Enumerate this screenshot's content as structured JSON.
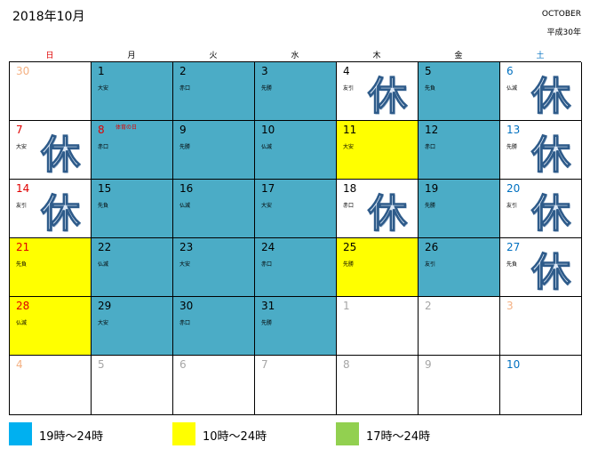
{
  "header": {
    "title": "2018年10月",
    "month_en": "OCTOBER",
    "era": "平成30年"
  },
  "weekdays": [
    {
      "label": "日",
      "color": "#e00000"
    },
    {
      "label": "月",
      "color": "#000000"
    },
    {
      "label": "火",
      "color": "#000000"
    },
    {
      "label": "水",
      "color": "#000000"
    },
    {
      "label": "木",
      "color": "#000000"
    },
    {
      "label": "金",
      "color": "#000000"
    },
    {
      "label": "土",
      "color": "#0070c0"
    }
  ],
  "colors": {
    "blue": "#4bacc6",
    "yellow": "#ffff00",
    "green": "#92d050",
    "sunday_red": "#e00000",
    "saturday_blue": "#0070c0",
    "out_of_month": "#f4b183",
    "out_of_month_gray": "#a6a6a6"
  },
  "closed_mark": "休",
  "weeks": [
    [
      {
        "day": "30",
        "fill": "white",
        "num_color": "#f4b183",
        "note": "",
        "closed": false,
        "holiday": ""
      },
      {
        "day": "1",
        "fill": "blue",
        "num_color": "#000000",
        "note": "大安",
        "closed": false,
        "holiday": ""
      },
      {
        "day": "2",
        "fill": "blue",
        "num_color": "#000000",
        "note": "赤口",
        "closed": false,
        "holiday": ""
      },
      {
        "day": "3",
        "fill": "blue",
        "num_color": "#000000",
        "note": "先勝",
        "closed": false,
        "holiday": ""
      },
      {
        "day": "4",
        "fill": "white",
        "num_color": "#000000",
        "note": "友引",
        "closed": true,
        "holiday": ""
      },
      {
        "day": "5",
        "fill": "blue",
        "num_color": "#000000",
        "note": "先負",
        "closed": false,
        "holiday": ""
      },
      {
        "day": "6",
        "fill": "white",
        "num_color": "#0070c0",
        "note": "仏滅",
        "closed": true,
        "holiday": ""
      }
    ],
    [
      {
        "day": "7",
        "fill": "white",
        "num_color": "#e00000",
        "note": "大安",
        "closed": true,
        "holiday": ""
      },
      {
        "day": "8",
        "fill": "blue",
        "num_color": "#e00000",
        "note": "赤口",
        "closed": false,
        "holiday": "体育の日"
      },
      {
        "day": "9",
        "fill": "blue",
        "num_color": "#000000",
        "note": "先勝",
        "closed": false,
        "holiday": ""
      },
      {
        "day": "10",
        "fill": "blue",
        "num_color": "#000000",
        "note": "仏滅",
        "closed": false,
        "holiday": ""
      },
      {
        "day": "11",
        "fill": "yellow",
        "num_color": "#000000",
        "note": "大安",
        "closed": false,
        "holiday": ""
      },
      {
        "day": "12",
        "fill": "blue",
        "num_color": "#000000",
        "note": "赤口",
        "closed": false,
        "holiday": ""
      },
      {
        "day": "13",
        "fill": "white",
        "num_color": "#0070c0",
        "note": "先勝",
        "closed": true,
        "holiday": ""
      }
    ],
    [
      {
        "day": "14",
        "fill": "white",
        "num_color": "#e00000",
        "note": "友引",
        "closed": true,
        "holiday": ""
      },
      {
        "day": "15",
        "fill": "blue",
        "num_color": "#000000",
        "note": "先負",
        "closed": false,
        "holiday": ""
      },
      {
        "day": "16",
        "fill": "blue",
        "num_color": "#000000",
        "note": "仏滅",
        "closed": false,
        "holiday": ""
      },
      {
        "day": "17",
        "fill": "blue",
        "num_color": "#000000",
        "note": "大安",
        "closed": false,
        "holiday": ""
      },
      {
        "day": "18",
        "fill": "white",
        "num_color": "#000000",
        "note": "赤口",
        "closed": true,
        "holiday": ""
      },
      {
        "day": "19",
        "fill": "blue",
        "num_color": "#000000",
        "note": "先勝",
        "closed": false,
        "holiday": ""
      },
      {
        "day": "20",
        "fill": "white",
        "num_color": "#0070c0",
        "note": "友引",
        "closed": true,
        "holiday": ""
      }
    ],
    [
      {
        "day": "21",
        "fill": "yellow",
        "num_color": "#e00000",
        "note": "先負",
        "closed": false,
        "holiday": ""
      },
      {
        "day": "22",
        "fill": "blue",
        "num_color": "#000000",
        "note": "仏滅",
        "closed": false,
        "holiday": ""
      },
      {
        "day": "23",
        "fill": "blue",
        "num_color": "#000000",
        "note": "大安",
        "closed": false,
        "holiday": ""
      },
      {
        "day": "24",
        "fill": "blue",
        "num_color": "#000000",
        "note": "赤口",
        "closed": false,
        "holiday": ""
      },
      {
        "day": "25",
        "fill": "yellow",
        "num_color": "#000000",
        "note": "先勝",
        "closed": false,
        "holiday": ""
      },
      {
        "day": "26",
        "fill": "blue",
        "num_color": "#000000",
        "note": "友引",
        "closed": false,
        "holiday": ""
      },
      {
        "day": "27",
        "fill": "white",
        "num_color": "#0070c0",
        "note": "先負",
        "closed": true,
        "holiday": ""
      }
    ],
    [
      {
        "day": "28",
        "fill": "yellow",
        "num_color": "#e00000",
        "note": "仏滅",
        "closed": false,
        "holiday": ""
      },
      {
        "day": "29",
        "fill": "blue",
        "num_color": "#000000",
        "note": "大安",
        "closed": false,
        "holiday": ""
      },
      {
        "day": "30",
        "fill": "blue",
        "num_color": "#000000",
        "note": "赤口",
        "closed": false,
        "holiday": ""
      },
      {
        "day": "31",
        "fill": "blue",
        "num_color": "#000000",
        "note": "先勝",
        "closed": false,
        "holiday": ""
      },
      {
        "day": "1",
        "fill": "white",
        "num_color": "#a6a6a6",
        "note": "",
        "closed": false,
        "holiday": ""
      },
      {
        "day": "2",
        "fill": "white",
        "num_color": "#a6a6a6",
        "note": "",
        "closed": false,
        "holiday": ""
      },
      {
        "day": "3",
        "fill": "white",
        "num_color": "#f4b183",
        "note": "",
        "closed": false,
        "holiday": ""
      }
    ],
    [
      {
        "day": "4",
        "fill": "white",
        "num_color": "#f4b183",
        "note": "",
        "closed": false,
        "holiday": ""
      },
      {
        "day": "5",
        "fill": "white",
        "num_color": "#a6a6a6",
        "note": "",
        "closed": false,
        "holiday": ""
      },
      {
        "day": "6",
        "fill": "white",
        "num_color": "#a6a6a6",
        "note": "",
        "closed": false,
        "holiday": ""
      },
      {
        "day": "7",
        "fill": "white",
        "num_color": "#a6a6a6",
        "note": "",
        "closed": false,
        "holiday": ""
      },
      {
        "day": "8",
        "fill": "white",
        "num_color": "#a6a6a6",
        "note": "",
        "closed": false,
        "holiday": ""
      },
      {
        "day": "9",
        "fill": "white",
        "num_color": "#a6a6a6",
        "note": "",
        "closed": false,
        "holiday": ""
      },
      {
        "day": "10",
        "fill": "white",
        "num_color": "#0070c0",
        "note": "",
        "closed": false,
        "holiday": ""
      }
    ]
  ],
  "legend": [
    {
      "color": "#00b0f0",
      "label": "19時～24時"
    },
    {
      "color": "#ffff00",
      "label": "10時～24時"
    },
    {
      "color": "#92d050",
      "label": "17時～24時"
    }
  ]
}
